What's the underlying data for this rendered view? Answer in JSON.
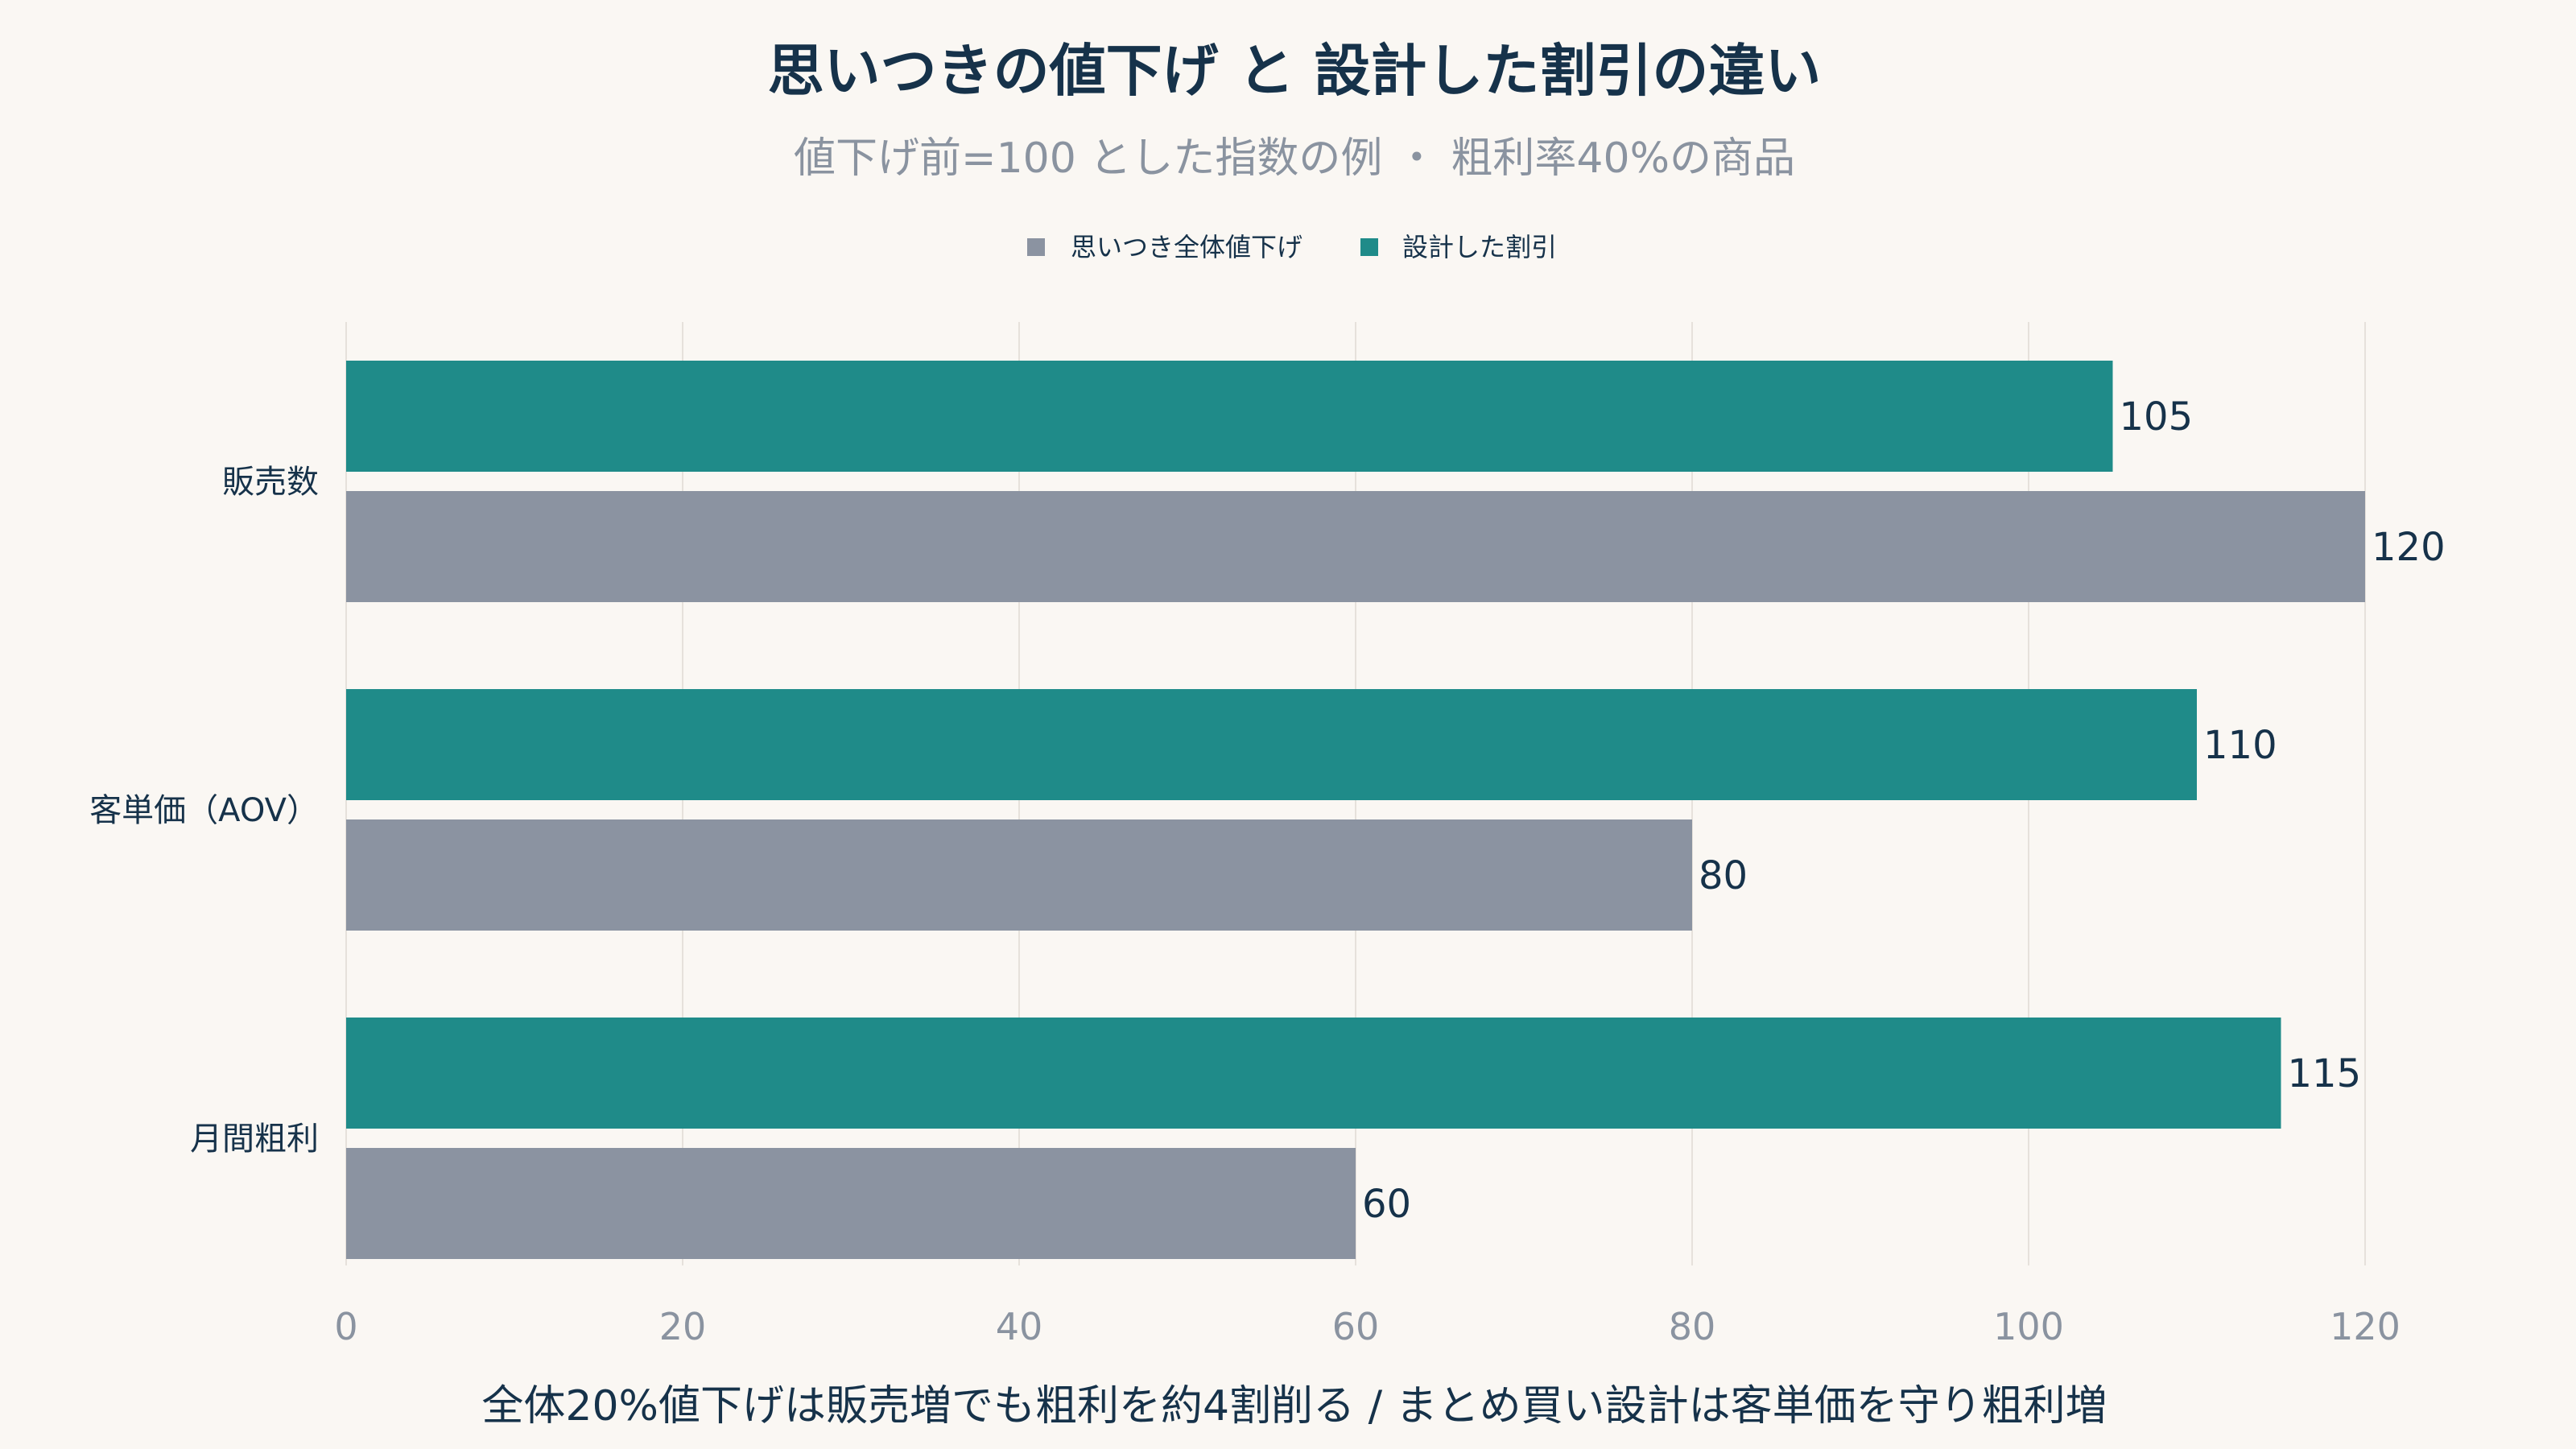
{
  "chart_data": {
    "type": "bar",
    "orientation": "horizontal",
    "title": "思いつきの値下げ と 設計した割引の違い",
    "subtitle": "値下げ前=100 とした指数の例 ・ 粗利率40%の商品",
    "caption": "全体20%値下げは販売増でも粗利を約4割削る / まとめ買い設計は客単価を守り粗利増",
    "categories": [
      "販売数",
      "客単価（AOV）",
      "月間粗利"
    ],
    "series": [
      {
        "name": "思いつき全体値下げ",
        "color": "#8b93a1",
        "values": [
          120,
          80,
          60
        ]
      },
      {
        "name": "設計した割引",
        "color": "#1f8b89",
        "values": [
          105,
          110,
          115
        ]
      }
    ],
    "xlim": [
      0,
      130
    ],
    "xticks": [
      0,
      20,
      40,
      60,
      80,
      100,
      120
    ],
    "grid": true,
    "legend_position": "top-center"
  }
}
